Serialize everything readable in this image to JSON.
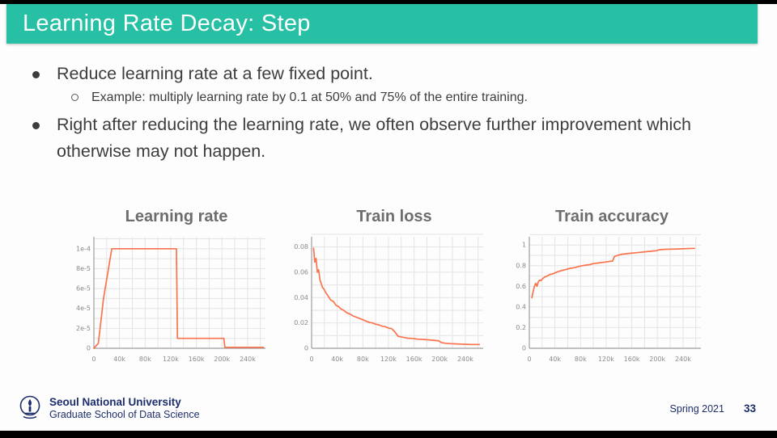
{
  "slide": {
    "title": "Learning Rate Decay: Step"
  },
  "bullets": {
    "b1": "Reduce learning rate at a few fixed point.",
    "b1_sub": "Example: multiply learning rate by 0.1 at 50% and 75% of the entire training.",
    "b2": "Right after reducing the learning rate, we often observe further improvement which otherwise may not happen."
  },
  "footer": {
    "university": "Seoul National University",
    "school": "Graduate School of Data Science",
    "term": "Spring 2021",
    "page": "33"
  },
  "colors": {
    "header_bg": "#27c0a4",
    "chart_line": "#fa734c",
    "footer_text": "#1c2d6b"
  },
  "chart_data": [
    {
      "type": "line",
      "title": "Learning rate",
      "xlim": [
        0,
        268000
      ],
      "ylim": [
        0,
        0.000112
      ],
      "x_grid_step": 20000,
      "y_grid_step": 1e-05,
      "x_ticks": [
        [
          0,
          "0"
        ],
        [
          40000,
          "40k"
        ],
        [
          80000,
          "80k"
        ],
        [
          120000,
          "120k"
        ],
        [
          160000,
          "160k"
        ],
        [
          200000,
          "200k"
        ],
        [
          240000,
          "240k"
        ]
      ],
      "y_ticks": [
        [
          0.0001,
          "1e-4"
        ],
        [
          8e-05,
          "8e-5"
        ],
        [
          6e-05,
          "6e-5"
        ],
        [
          4e-05,
          "4e-5"
        ],
        [
          2e-05,
          "2e-5"
        ],
        [
          0,
          "0"
        ]
      ],
      "series": [
        {
          "name": "learning rate",
          "points": [
            [
              0,
              0
            ],
            [
              7000,
              5e-06
            ],
            [
              15000,
              5e-05
            ],
            [
              28000,
              0.0001
            ],
            [
              129000,
              0.0001
            ],
            [
              130500,
              1e-05
            ],
            [
              203000,
              1e-05
            ],
            [
              204500,
              1e-06
            ],
            [
              265000,
              1e-06
            ]
          ]
        }
      ]
    },
    {
      "type": "line",
      "title": "Train loss",
      "xlim": [
        0,
        268000
      ],
      "ylim": [
        0,
        0.088
      ],
      "x_grid_step": 20000,
      "y_grid_step": 0.01,
      "x_ticks": [
        [
          0,
          "0"
        ],
        [
          40000,
          "40k"
        ],
        [
          80000,
          "80k"
        ],
        [
          120000,
          "120k"
        ],
        [
          160000,
          "160k"
        ],
        [
          200000,
          "200k"
        ],
        [
          240000,
          "240k"
        ]
      ],
      "y_ticks": [
        [
          0.08,
          "0.08"
        ],
        [
          0.06,
          "0.06"
        ],
        [
          0.04,
          "0.04"
        ],
        [
          0.02,
          "0.02"
        ],
        [
          0,
          "0"
        ]
      ],
      "series": [
        {
          "name": "train loss",
          "points": [
            [
              3000,
              0.079
            ],
            [
              5000,
              0.068
            ],
            [
              7000,
              0.071
            ],
            [
              9000,
              0.06
            ],
            [
              11000,
              0.062
            ],
            [
              13000,
              0.054
            ],
            [
              15000,
              0.051
            ],
            [
              17000,
              0.048
            ],
            [
              19000,
              0.047
            ],
            [
              22000,
              0.044
            ],
            [
              26000,
              0.041
            ],
            [
              30000,
              0.038
            ],
            [
              34000,
              0.037
            ],
            [
              38000,
              0.034
            ],
            [
              42000,
              0.033
            ],
            [
              46000,
              0.031
            ],
            [
              50000,
              0.03
            ],
            [
              55000,
              0.028
            ],
            [
              60000,
              0.027
            ],
            [
              65000,
              0.0255
            ],
            [
              70000,
              0.0245
            ],
            [
              75000,
              0.0235
            ],
            [
              80000,
              0.0225
            ],
            [
              85000,
              0.0215
            ],
            [
              90000,
              0.0205
            ],
            [
              95000,
              0.02
            ],
            [
              100000,
              0.019
            ],
            [
              105000,
              0.0185
            ],
            [
              110000,
              0.0175
            ],
            [
              115000,
              0.017
            ],
            [
              120000,
              0.016
            ],
            [
              125000,
              0.0155
            ],
            [
              130000,
              0.013
            ],
            [
              135000,
              0.0095
            ],
            [
              140000,
              0.009
            ],
            [
              145000,
              0.0085
            ],
            [
              150000,
              0.008
            ],
            [
              158000,
              0.0078
            ],
            [
              166000,
              0.0072
            ],
            [
              174000,
              0.007
            ],
            [
              182000,
              0.0067
            ],
            [
              190000,
              0.0063
            ],
            [
              198000,
              0.006
            ],
            [
              203000,
              0.0045
            ],
            [
              208000,
              0.004
            ],
            [
              216000,
              0.0037
            ],
            [
              224000,
              0.0035
            ],
            [
              232000,
              0.0033
            ],
            [
              240000,
              0.0032
            ],
            [
              250000,
              0.003
            ],
            [
              262000,
              0.003
            ]
          ]
        }
      ]
    },
    {
      "type": "line",
      "title": "Train accuracy",
      "xlim": [
        0,
        268000
      ],
      "ylim": [
        0,
        1.08
      ],
      "x_grid_step": 20000,
      "y_grid_step": 0.1,
      "x_ticks": [
        [
          0,
          "0"
        ],
        [
          40000,
          "40k"
        ],
        [
          80000,
          "80k"
        ],
        [
          120000,
          "120k"
        ],
        [
          160000,
          "160k"
        ],
        [
          200000,
          "200k"
        ],
        [
          240000,
          "240k"
        ]
      ],
      "y_ticks": [
        [
          1,
          "1"
        ],
        [
          0.8,
          "0.8"
        ],
        [
          0.6,
          "0.6"
        ],
        [
          0.4,
          "0.4"
        ],
        [
          0.2,
          "0.2"
        ],
        [
          0,
          "0"
        ]
      ],
      "series": [
        {
          "name": "train accuracy",
          "points": [
            [
              4000,
              0.49
            ],
            [
              6000,
              0.55
            ],
            [
              8000,
              0.6
            ],
            [
              10000,
              0.63
            ],
            [
              12000,
              0.6
            ],
            [
              14000,
              0.645
            ],
            [
              16000,
              0.66
            ],
            [
              18000,
              0.655
            ],
            [
              20000,
              0.67
            ],
            [
              24000,
              0.69
            ],
            [
              28000,
              0.7
            ],
            [
              32000,
              0.715
            ],
            [
              36000,
              0.72
            ],
            [
              40000,
              0.73
            ],
            [
              46000,
              0.745
            ],
            [
              52000,
              0.755
            ],
            [
              58000,
              0.765
            ],
            [
              64000,
              0.775
            ],
            [
              70000,
              0.78
            ],
            [
              76000,
              0.79
            ],
            [
              82000,
              0.8
            ],
            [
              88000,
              0.805
            ],
            [
              94000,
              0.81
            ],
            [
              100000,
              0.82
            ],
            [
              106000,
              0.825
            ],
            [
              112000,
              0.83
            ],
            [
              118000,
              0.835
            ],
            [
              124000,
              0.84
            ],
            [
              130000,
              0.845
            ],
            [
              133000,
              0.89
            ],
            [
              138000,
              0.9
            ],
            [
              144000,
              0.91
            ],
            [
              150000,
              0.915
            ],
            [
              158000,
              0.92
            ],
            [
              166000,
              0.925
            ],
            [
              174000,
              0.93
            ],
            [
              182000,
              0.935
            ],
            [
              190000,
              0.94
            ],
            [
              198000,
              0.945
            ],
            [
              203000,
              0.955
            ],
            [
              210000,
              0.958
            ],
            [
              220000,
              0.96
            ],
            [
              232000,
              0.962
            ],
            [
              244000,
              0.965
            ],
            [
              258000,
              0.968
            ]
          ]
        }
      ]
    }
  ]
}
